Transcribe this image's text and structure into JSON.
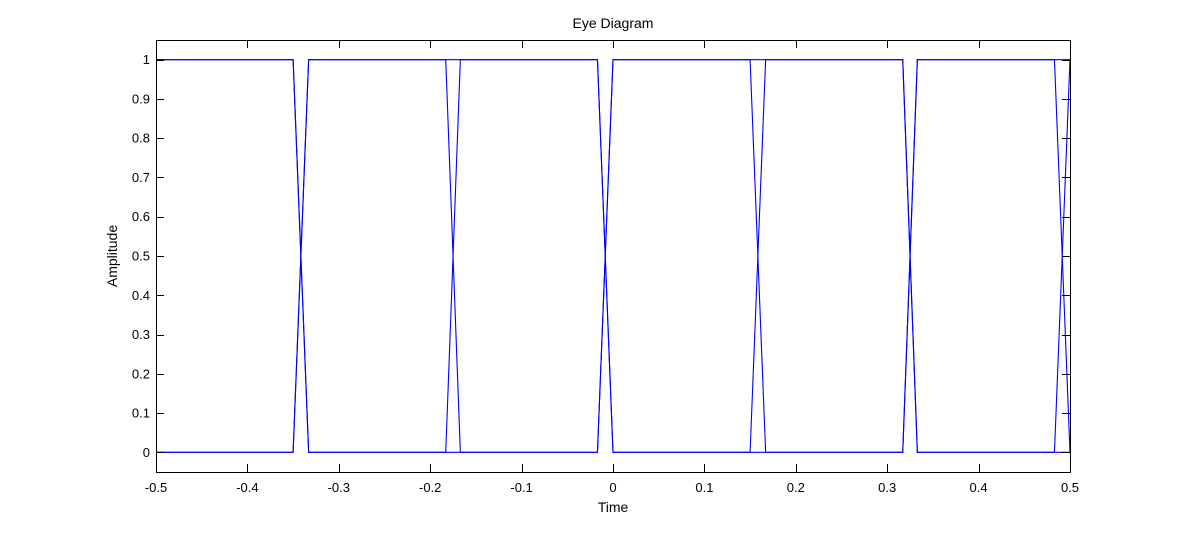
{
  "chart_data": {
    "type": "line",
    "title": "Eye Diagram",
    "xlabel": "Time",
    "ylabel": "Amplitude",
    "xlim": [
      -0.5,
      0.5
    ],
    "ylim": [
      -0.05,
      1.05
    ],
    "xticks": [
      -0.5,
      -0.4,
      -0.3,
      -0.2,
      -0.1,
      0,
      0.1,
      0.2,
      0.3,
      0.4,
      0.5
    ],
    "xtick_labels": [
      "-0.5",
      "-0.4",
      "-0.3",
      "-0.2",
      "-0.1",
      "0",
      "0.1",
      "0.2",
      "0.3",
      "0.4",
      "0.5"
    ],
    "yticks": [
      0,
      0.1,
      0.2,
      0.3,
      0.4,
      0.5,
      0.6,
      0.7,
      0.8,
      0.9,
      1
    ],
    "ytick_labels": [
      "0",
      "0.1",
      "0.2",
      "0.3",
      "0.4",
      "0.5",
      "0.6",
      "0.7",
      "0.8",
      "0.9",
      "1"
    ],
    "grid": false,
    "line_color": "#0000ff",
    "series": [
      {
        "x": [
          -0.5,
          -0.35,
          -0.333,
          -0.183,
          -0.167,
          -0.017,
          0.0,
          0.15,
          0.167,
          0.317,
          0.333,
          0.483,
          0.5
        ],
        "values": [
          1,
          1,
          0,
          0,
          1,
          1,
          0,
          0,
          1,
          1,
          0,
          0,
          1
        ]
      },
      {
        "x": [
          -0.5,
          -0.35,
          -0.333,
          -0.183,
          -0.167,
          -0.017,
          0.0,
          0.15,
          0.167,
          0.317,
          0.333,
          0.483,
          0.5
        ],
        "values": [
          0,
          0,
          1,
          1,
          0,
          0,
          1,
          1,
          0,
          0,
          1,
          1,
          0
        ]
      },
      {
        "x": [
          -0.5,
          -0.35,
          -0.333,
          -0.183,
          -0.167,
          -0.017,
          0.0,
          0.15,
          0.167,
          0.317,
          0.333,
          0.483,
          0.5
        ],
        "values": [
          1,
          1,
          0,
          0,
          0,
          0,
          1,
          1,
          1,
          1,
          0,
          0,
          0
        ]
      },
      {
        "x": [
          -0.5,
          -0.35,
          -0.333,
          -0.183,
          -0.167,
          -0.017,
          0.0,
          0.15,
          0.167,
          0.317,
          0.333,
          0.483,
          0.5
        ],
        "values": [
          0,
          0,
          1,
          1,
          1,
          1,
          0,
          0,
          0,
          0,
          1,
          1,
          1
        ]
      }
    ]
  }
}
